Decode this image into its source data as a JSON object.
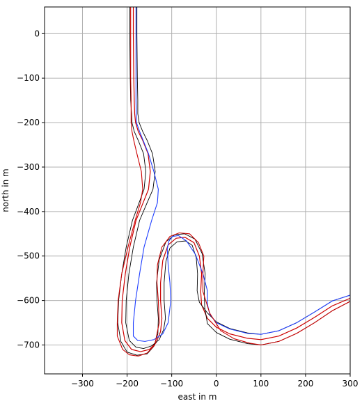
{
  "chart_data": {
    "type": "line",
    "xlabel": "east in m",
    "ylabel": "north in m",
    "xlim": [
      -385,
      300
    ],
    "ylim": [
      -765,
      60
    ],
    "xticks": [
      -300,
      -200,
      -100,
      0,
      100,
      200,
      300
    ],
    "yticks": [
      0,
      -100,
      -200,
      -300,
      -400,
      -500,
      -600,
      -700
    ],
    "grid": true,
    "colors": {
      "boundary": "#000000",
      "path_a": "#1f3fff",
      "path_b": "#cc0000",
      "grid": "#b0b0b0"
    },
    "series": [
      {
        "role": "centerline",
        "x": [
          -186,
          -186,
          -185,
          -184,
          -183,
          -181,
          -175,
          -165,
          -153,
          -148,
          -152,
          -164,
          -180,
          -194,
          -204,
          -211,
          -212,
          -205,
          -190,
          -170,
          -150,
          -135,
          -125,
          -122,
          -125,
          -125,
          -120,
          -108,
          -90,
          -70,
          -50,
          -38,
          -33,
          -35,
          -33,
          -20,
          0,
          30,
          70,
          100,
          140,
          180,
          220,
          260,
          300
        ],
        "y": [
          60,
          0,
          -100,
          -150,
          -180,
          -200,
          -220,
          -240,
          -270,
          -310,
          -350,
          -380,
          -420,
          -480,
          -540,
          -600,
          -650,
          -690,
          -710,
          -715,
          -710,
          -695,
          -670,
          -640,
          -600,
          -560,
          -510,
          -475,
          -460,
          -458,
          -470,
          -500,
          -540,
          -580,
          -610,
          -640,
          -660,
          -675,
          -685,
          -688,
          -680,
          -662,
          -638,
          -612,
          -595
        ]
      },
      {
        "role": "outer-boundary",
        "x": [
          -178,
          -178,
          -177,
          -176,
          -176,
          -173,
          -165,
          -155,
          -143,
          -137,
          -142,
          -155,
          -172,
          -186,
          -196,
          -202,
          -203,
          -195,
          -180,
          -163,
          -145,
          -128,
          -118,
          -114,
          -117,
          -117,
          -113,
          -104,
          -88,
          -69,
          -54,
          -45,
          -42,
          -43,
          -38,
          -20,
          0,
          30,
          70,
          100,
          140,
          180,
          220,
          260,
          300
        ],
        "y": [
          60,
          0,
          -100,
          -150,
          -180,
          -200,
          -220,
          -240,
          -270,
          -310,
          -350,
          -380,
          -420,
          -480,
          -540,
          -600,
          -650,
          -690,
          -705,
          -708,
          -702,
          -688,
          -665,
          -640,
          -600,
          -560,
          -512,
          -482,
          -468,
          -466,
          -476,
          -504,
          -540,
          -578,
          -604,
          -628,
          -648,
          -663,
          -673,
          -676,
          -668,
          -650,
          -626,
          -601,
          -588
        ]
      },
      {
        "role": "inner-boundary",
        "x": [
          -194,
          -194,
          -193,
          -192,
          -190,
          -189,
          -184,
          -175,
          -163,
          -158,
          -162,
          -173,
          -188,
          -202,
          -212,
          -219,
          -221,
          -214,
          -200,
          -178,
          -155,
          -140,
          -131,
          -130,
          -133,
          -134,
          -128,
          -113,
          -93,
          -71,
          -48,
          -32,
          -25,
          -27,
          -26,
          -20,
          0,
          30,
          70,
          100,
          140,
          180,
          220,
          260,
          300
        ],
        "y": [
          60,
          0,
          -100,
          -150,
          -180,
          -200,
          -220,
          -240,
          -270,
          -310,
          -350,
          -380,
          -420,
          -480,
          -540,
          -600,
          -650,
          -692,
          -716,
          -723,
          -720,
          -703,
          -675,
          -640,
          -600,
          -560,
          -508,
          -468,
          -452,
          -450,
          -462,
          -494,
          -540,
          -582,
          -616,
          -652,
          -672,
          -687,
          -697,
          -700,
          -692,
          -674,
          -650,
          -623,
          -602
        ]
      },
      {
        "role": "outer-track-edge",
        "x": [
          -180,
          -180,
          -180,
          -180,
          -179,
          -172,
          -164,
          -152,
          -140,
          -130,
          -132,
          -145,
          -162,
          -172,
          -181,
          -186,
          -186,
          -176,
          -160,
          -140,
          -120,
          -108,
          -102,
          -104,
          -108,
          -110,
          -106,
          -98,
          -85,
          -67,
          -47,
          -30,
          -20,
          -20,
          -15,
          0,
          30,
          70,
          100,
          140,
          180,
          220,
          260,
          300
        ],
        "y": [
          60,
          0,
          -100,
          -150,
          -200,
          -220,
          -240,
          -270,
          -310,
          -350,
          -380,
          -420,
          -480,
          -540,
          -600,
          -650,
          -680,
          -690,
          -692,
          -688,
          -675,
          -650,
          -600,
          -560,
          -520,
          -484,
          -466,
          -456,
          -454,
          -466,
          -496,
          -540,
          -578,
          -608,
          -630,
          -650,
          -664,
          -674,
          -676,
          -668,
          -650,
          -626,
          -601,
          -588
        ]
      },
      {
        "role": "inner-track-edge",
        "x": [
          -192,
          -192,
          -192,
          -191,
          -191,
          -189,
          -185,
          -178,
          -168,
          -165,
          -170,
          -182,
          -198,
          -212,
          -220,
          -222,
          -222,
          -210,
          -195,
          -175,
          -155,
          -138,
          -128,
          -130,
          -133,
          -132,
          -122,
          -104,
          -83,
          -60,
          -40,
          -28,
          -30,
          -30,
          -15,
          10,
          40,
          75,
          100,
          140,
          180,
          220,
          260,
          300
        ],
        "y": [
          60,
          0,
          -100,
          -150,
          -200,
          -220,
          -240,
          -270,
          -310,
          -350,
          -380,
          -420,
          -480,
          -540,
          -600,
          -650,
          -680,
          -710,
          -722,
          -725,
          -718,
          -700,
          -650,
          -600,
          -560,
          -520,
          -480,
          -456,
          -448,
          -450,
          -470,
          -500,
          -540,
          -580,
          -628,
          -668,
          -686,
          -696,
          -700,
          -692,
          -674,
          -650,
          -623,
          -602
        ]
      }
    ]
  }
}
